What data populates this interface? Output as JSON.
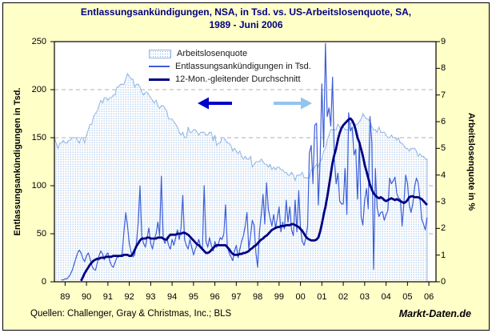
{
  "title": {
    "line1": "Entlassungsankündigungen, NSA, in Tsd. vs. US-Arbeitslosenquote, SA,",
    "line2": "1989 - Juni 2006"
  },
  "legend": [
    {
      "label": "Arbeitslosenquote",
      "swatch": "area"
    },
    {
      "label": "Entlassungsankündigungen in Tsd.",
      "swatch": "thin"
    },
    {
      "label": "12-Mon.-gleitender Durchschnitt",
      "swatch": "thick"
    }
  ],
  "axes": {
    "left": {
      "label": "Entlassungsankündigungen in Tsd.",
      "ticks": [
        0,
        50,
        100,
        150,
        200,
        250
      ]
    },
    "right": {
      "label": "Arbeitslosenquote in %",
      "ticks": [
        0,
        1,
        2,
        3,
        4,
        5,
        6,
        7,
        8,
        9
      ]
    },
    "x": {
      "tick_labels": [
        "89",
        "90",
        "91",
        "92",
        "93",
        "94",
        "95",
        "96",
        "97",
        "98",
        "99",
        "00",
        "01",
        "02",
        "03",
        "04",
        "05",
        "06"
      ]
    }
  },
  "footer": {
    "sources": "Quellen: Challenger, Gray & Christmas, Inc.; BLS",
    "site": "Markt-Daten.de"
  },
  "colors": {
    "frame_bg": "#ffffc8",
    "title_text": "#000080",
    "gridline": "#b0b0b0",
    "area_dot": "#85b2e4",
    "area_edge": "#8fb4e0",
    "thin_line": "#3c5ed8",
    "thick_line": "#000080",
    "arrow_dark": "#0000cc",
    "arrow_light": "#92c4ee"
  },
  "chart_data": {
    "type": "line",
    "title": "Entlassungsankündigungen, NSA, in Tsd. vs. US-Arbeitslosenquote, SA, 1989 - Juni 2006",
    "x_domain": "monthly, Jan 1989 - Jun 2006",
    "x_tick_labels": [
      "89",
      "90",
      "91",
      "92",
      "93",
      "94",
      "95",
      "96",
      "97",
      "98",
      "99",
      "00",
      "01",
      "02",
      "03",
      "04",
      "05",
      "06"
    ],
    "left_axis_label": "Entlassungsankündigungen in Tsd.",
    "right_axis_label": "Arbeitslosenquote in %",
    "left_range": [
      0,
      250
    ],
    "right_range": [
      0,
      9
    ],
    "grid": "horizontal dashed at 50,100,150,200 (left axis)",
    "legend_position": "top-center inside plot",
    "series": [
      {
        "name": "Arbeitslosenquote",
        "axis": "right",
        "style": "area-dotted",
        "color": "#8fb4e0",
        "values": [
          5.4,
          5.2,
          5.0,
          5.2,
          5.2,
          5.3,
          5.2,
          5.2,
          5.3,
          5.3,
          5.4,
          5.4,
          5.4,
          5.3,
          5.2,
          5.4,
          5.4,
          5.2,
          5.5,
          5.7,
          5.9,
          5.9,
          6.2,
          6.3,
          6.4,
          6.6,
          6.8,
          6.7,
          6.9,
          6.9,
          6.8,
          6.9,
          6.9,
          7.0,
          7.0,
          7.3,
          7.3,
          7.4,
          7.4,
          7.4,
          7.6,
          7.8,
          7.7,
          7.6,
          7.6,
          7.3,
          7.4,
          7.4,
          7.3,
          7.1,
          7.0,
          7.1,
          7.1,
          7.0,
          6.9,
          6.8,
          6.7,
          6.8,
          6.6,
          6.5,
          6.6,
          6.6,
          6.5,
          6.4,
          6.1,
          6.1,
          6.1,
          6.0,
          5.9,
          5.8,
          5.6,
          5.5,
          5.6,
          5.4,
          5.4,
          5.8,
          5.6,
          5.6,
          5.7,
          5.7,
          5.6,
          5.5,
          5.6,
          5.6,
          5.6,
          5.5,
          5.5,
          5.6,
          5.6,
          5.3,
          5.5,
          5.1,
          5.2,
          5.2,
          5.4,
          5.4,
          5.3,
          5.2,
          5.2,
          5.1,
          4.9,
          5.0,
          4.9,
          4.8,
          4.9,
          4.7,
          4.6,
          4.7,
          4.6,
          4.6,
          4.7,
          4.3,
          4.4,
          4.5,
          4.5,
          4.5,
          4.6,
          4.5,
          4.4,
          4.4,
          4.3,
          4.4,
          4.2,
          4.3,
          4.2,
          4.3,
          4.3,
          4.2,
          4.2,
          4.1,
          4.1,
          4.0,
          4.0,
          4.1,
          4.0,
          3.8,
          4.0,
          4.0,
          4.0,
          4.1,
          3.9,
          3.9,
          3.9,
          3.9,
          4.2,
          4.2,
          4.3,
          4.4,
          4.3,
          4.5,
          4.6,
          4.9,
          5.0,
          5.3,
          5.5,
          5.7,
          5.7,
          5.7,
          5.7,
          5.9,
          5.8,
          5.8,
          5.8,
          5.7,
          5.7,
          5.7,
          5.9,
          6.0,
          5.8,
          5.9,
          5.9,
          6.0,
          6.1,
          6.3,
          6.2,
          6.1,
          6.1,
          6.0,
          5.8,
          5.7,
          5.7,
          5.6,
          5.8,
          5.6,
          5.6,
          5.6,
          5.5,
          5.4,
          5.4,
          5.5,
          5.4,
          5.4,
          5.3,
          5.4,
          5.2,
          5.2,
          5.1,
          5.0,
          5.0,
          4.9,
          5.0,
          5.0,
          5.0,
          4.9,
          4.7,
          4.8,
          4.7,
          4.7,
          4.6,
          4.6
        ]
      },
      {
        "name": "Entlassungsankündigungen in Tsd.",
        "axis": "left",
        "style": "thin-line",
        "color": "#3c5ed8",
        "values": [
          null,
          null,
          null,
          null,
          2,
          2,
          3,
          3,
          5,
          8,
          12,
          18,
          24,
          30,
          33,
          30,
          24,
          21,
          27,
          30,
          24,
          17,
          13,
          12,
          19,
          27,
          32,
          29,
          23,
          28,
          30,
          22,
          17,
          15,
          20,
          25,
          26,
          27,
          29,
          52,
          72,
          58,
          40,
          31,
          26,
          28,
          40,
          62,
          100,
          48,
          40,
          36,
          46,
          56,
          40,
          34,
          44,
          50,
          62,
          48,
          110,
          45,
          40,
          46,
          38,
          34,
          44,
          38,
          46,
          54,
          44,
          56,
          90,
          44,
          38,
          34,
          44,
          36,
          28,
          34,
          38,
          44,
          36,
          33,
          100,
          42,
          36,
          46,
          38,
          32,
          42,
          36,
          40,
          46,
          44,
          50,
          80,
          36,
          30,
          26,
          22,
          32,
          38,
          25,
          34,
          42,
          48,
          58,
          72,
          34,
          48,
          64,
          59,
          30,
          15,
          52,
          70,
          91,
          60,
          103,
          75,
          66,
          58,
          70,
          56,
          66,
          78,
          52,
          62,
          55,
          85,
          62,
          78,
          54,
          48,
          85,
          52,
          95,
          56,
          42,
          38,
          46,
          58,
          134,
          142,
          102,
          163,
          165,
          80,
          125,
          206,
          140,
          248,
          172,
          181,
          162,
          213,
          128,
          102,
          113,
          84,
          81,
          81,
          118,
          70,
          176,
          157,
          161,
          132,
          138,
          86,
          146,
          68,
          59,
          85,
          97,
          76,
          172,
          145,
          13,
          118,
          77,
          68,
          72,
          73,
          64,
          70,
          74,
          108,
          102,
          105,
          109,
          92,
          87,
          86,
          58,
          82,
          111,
          103,
          80,
          72,
          81,
          99,
          108,
          103,
          87,
          65,
          60,
          54,
          67
        ]
      },
      {
        "name": "12-Mon.-gleitender Durchschnitt",
        "axis": "left",
        "style": "thick-line",
        "color": "#000080",
        "values": [
          null,
          null,
          null,
          null,
          null,
          null,
          null,
          null,
          null,
          null,
          null,
          null,
          null,
          null,
          null,
          1,
          5,
          9,
          12,
          15,
          18,
          20,
          22,
          23,
          24,
          24,
          25,
          25,
          25,
          26,
          26,
          26,
          26,
          27,
          27,
          27,
          27,
          27,
          27,
          28,
          28,
          28,
          27,
          27,
          29,
          33,
          37,
          40,
          43,
          45,
          45,
          45,
          46,
          46,
          45,
          45,
          45,
          45,
          46,
          46,
          46,
          45,
          44,
          44,
          47,
          49,
          49,
          49,
          49,
          50,
          50,
          50,
          51,
          51,
          50,
          49,
          47,
          45,
          43,
          41,
          39,
          38,
          36,
          34,
          32,
          30,
          30,
          31,
          33,
          35,
          37,
          38,
          38,
          38,
          38,
          38,
          38,
          36,
          34,
          31,
          29,
          28,
          28,
          28,
          29,
          29,
          30,
          30,
          31,
          32,
          34,
          35,
          37,
          38,
          40,
          42,
          44,
          45,
          47,
          48,
          50,
          52,
          54,
          55,
          56,
          57,
          57,
          58,
          58,
          58,
          59,
          59,
          59,
          60,
          60,
          59,
          58,
          57,
          55,
          53,
          50,
          47,
          45,
          44,
          43,
          43,
          43,
          44,
          46,
          52,
          60,
          70,
          78,
          88,
          100,
          112,
          124,
          132,
          139,
          148,
          155,
          160,
          163,
          165,
          167,
          169,
          170,
          168,
          164,
          158,
          150,
          145,
          138,
          131,
          122,
          115,
          108,
          101,
          96,
          92,
          90,
          88,
          87,
          88,
          87,
          85,
          84,
          85,
          86,
          87,
          86,
          85,
          86,
          85,
          84,
          83,
          82,
          83,
          85,
          88,
          89,
          89,
          88,
          88,
          88,
          87,
          86,
          84,
          82,
          80
        ]
      }
    ]
  }
}
